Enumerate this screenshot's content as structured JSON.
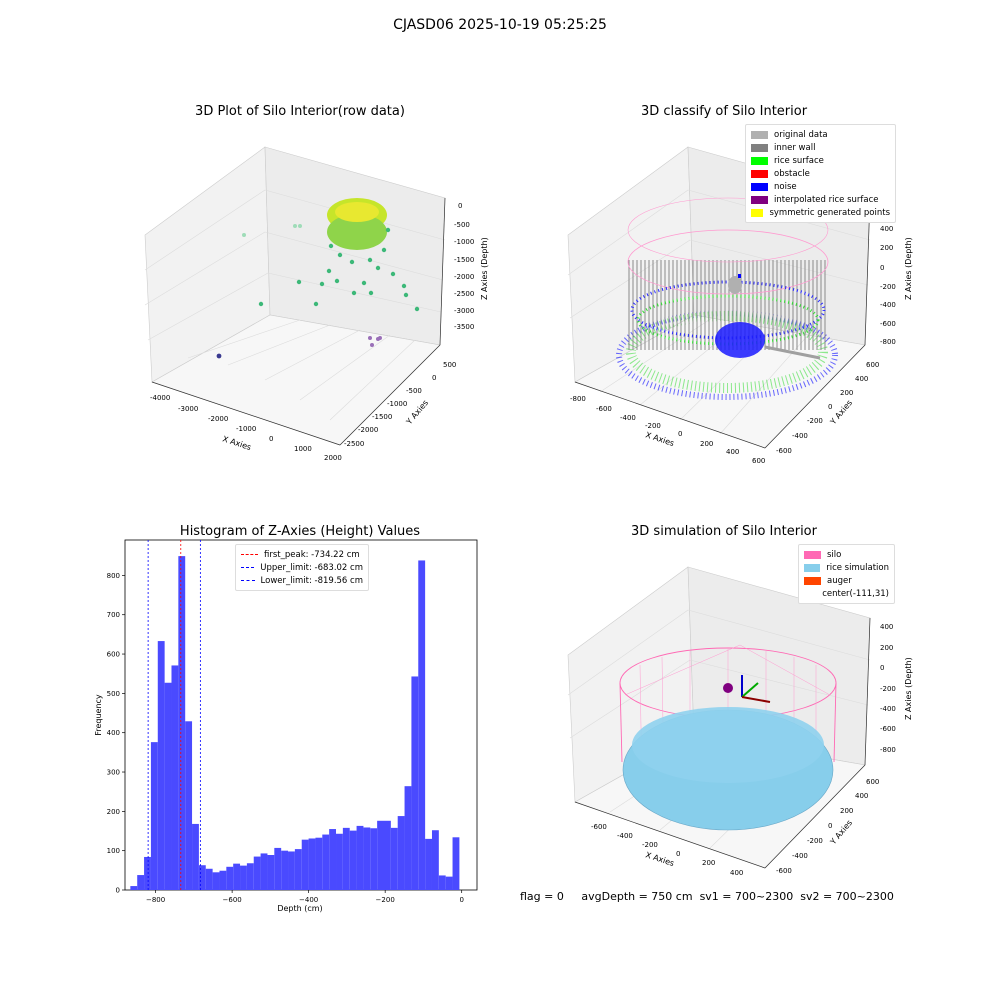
{
  "figure": {
    "title": "CJASD06 2025-10-19 05:25:25"
  },
  "panels": {
    "raw": {
      "title": "3D Plot of Silo Interior(row data)",
      "x_label": "X Axies",
      "y_label": "Y Axies",
      "z_label": "Z Axies (Depth)",
      "x_ticks": [
        "-4000",
        "-3000",
        "-2000",
        "-1000",
        "0",
        "1000",
        "2000"
      ],
      "y_ticks": [
        "500",
        "0",
        "-500",
        "-1000",
        "-1500",
        "-2000",
        "-2500"
      ],
      "z_ticks": [
        "0",
        "-500",
        "-1000",
        "-1500",
        "-2000",
        "-2500",
        "-3000",
        "-3500"
      ]
    },
    "classify": {
      "title": "3D classify of Silo Interior",
      "x_label": "X Axies",
      "y_label": "Y Axies",
      "z_label": "Z Axies (Depth)",
      "x_ticks": [
        "-800",
        "-600",
        "-400",
        "-200",
        "0",
        "200",
        "400",
        "600"
      ],
      "y_ticks": [
        "600",
        "400",
        "200",
        "0",
        "-200",
        "-400",
        "-600"
      ],
      "z_ticks": [
        "400",
        "200",
        "0",
        "-200",
        "-400",
        "-600",
        "-800"
      ],
      "z_tick_partial": "0",
      "legend": [
        {
          "label": "original data",
          "color": "#b0b0b0"
        },
        {
          "label": "inner wall",
          "color": "#808080"
        },
        {
          "label": "rice surface",
          "color": "#00ff00"
        },
        {
          "label": "obstacle",
          "color": "#ff0000"
        },
        {
          "label": "noise",
          "color": "#0000ff"
        },
        {
          "label": "interpolated rice surface",
          "color": "#800080"
        },
        {
          "label": "symmetric generated points",
          "color": "#ffff00"
        }
      ]
    },
    "simulation": {
      "title": "3D simulation of Silo Interior",
      "x_label": "X Axies",
      "y_label": "Y Axies",
      "z_label": "Z Axies (Depth)",
      "x_ticks": [
        "-600",
        "-400",
        "-200",
        "0",
        "200",
        "400"
      ],
      "y_ticks": [
        "600",
        "400",
        "200",
        "0",
        "-200",
        "-400",
        "-600"
      ],
      "z_ticks": [
        "400",
        "200",
        "0",
        "-200",
        "-400",
        "-600",
        "-800"
      ],
      "legend": [
        {
          "label": "silo",
          "color": "#ff69b4"
        },
        {
          "label": "rice simulation",
          "color": "#87ceeb"
        },
        {
          "label": "auger",
          "color": "#ff4500"
        },
        {
          "label": "center(-111,31)",
          "color": "#ffffff"
        }
      ]
    }
  },
  "chart_data": {
    "type": "bar",
    "title": "Histogram of Z-Axies (Height) Values",
    "xlabel": "Depth (cm)",
    "ylabel": "Frequency",
    "xlim": [
      -880,
      40
    ],
    "ylim": [
      0,
      890
    ],
    "bar_color": "#4a4aff",
    "x_ticks": [
      -800,
      -600,
      -400,
      -200,
      0
    ],
    "x_tick_labels": [
      "−800",
      "−600",
      "−400",
      "−200",
      "0"
    ],
    "y_ticks": [
      0,
      100,
      200,
      300,
      400,
      500,
      600,
      700,
      800
    ],
    "bin_width": 13.6,
    "bins": [
      {
        "x": -837.5,
        "y": 10
      },
      {
        "x": -823.9,
        "y": 38
      },
      {
        "x": -810.3,
        "y": 84
      },
      {
        "x": -796.7,
        "y": 376
      },
      {
        "x": -783.1,
        "y": 633
      },
      {
        "x": -769.5,
        "y": 527
      },
      {
        "x": -755.9,
        "y": 571
      },
      {
        "x": -742.3,
        "y": 849
      },
      {
        "x": -728.7,
        "y": 429
      },
      {
        "x": -715.1,
        "y": 168
      },
      {
        "x": -701.5,
        "y": 63
      },
      {
        "x": -687.9,
        "y": 54
      },
      {
        "x": -674.3,
        "y": 45
      },
      {
        "x": -660.7,
        "y": 49
      },
      {
        "x": -647.1,
        "y": 59
      },
      {
        "x": -633.5,
        "y": 67
      },
      {
        "x": -619.9,
        "y": 62
      },
      {
        "x": -606.3,
        "y": 68
      },
      {
        "x": -592.7,
        "y": 85
      },
      {
        "x": -579.1,
        "y": 93
      },
      {
        "x": -565.5,
        "y": 89
      },
      {
        "x": -551.9,
        "y": 107
      },
      {
        "x": -538.3,
        "y": 100
      },
      {
        "x": -524.7,
        "y": 98
      },
      {
        "x": -511.1,
        "y": 104
      },
      {
        "x": -497.5,
        "y": 128
      },
      {
        "x": -483.9,
        "y": 131
      },
      {
        "x": -470.3,
        "y": 133
      },
      {
        "x": -456.7,
        "y": 141
      },
      {
        "x": -443.1,
        "y": 155
      },
      {
        "x": -429.5,
        "y": 143
      },
      {
        "x": -415.9,
        "y": 158
      },
      {
        "x": -402.3,
        "y": 151
      },
      {
        "x": -388.7,
        "y": 163
      },
      {
        "x": -375.1,
        "y": 159
      },
      {
        "x": -361.5,
        "y": 157
      },
      {
        "x": -347.9,
        "y": 176
      },
      {
        "x": -334.3,
        "y": 176
      },
      {
        "x": -320.7,
        "y": 158
      },
      {
        "x": -307.1,
        "y": 188
      },
      {
        "x": -293.5,
        "y": 264
      },
      {
        "x": -279.9,
        "y": 543
      },
      {
        "x": -266.3,
        "y": 838
      },
      {
        "x": -252.7,
        "y": 130
      },
      {
        "x": -239.1,
        "y": 152
      },
      {
        "x": -225.5,
        "y": 37
      },
      {
        "x": -211.9,
        "y": 34
      },
      {
        "x": -198.3,
        "y": 134
      }
    ],
    "reference_lines": [
      {
        "label": "first_peak: -734.22 cm",
        "x": -734.22,
        "color": "#ff0000"
      },
      {
        "label": "Upper_limit: -683.02 cm",
        "x": -683.02,
        "color": "#0000ff"
      },
      {
        "label": "Lower_limit: -819.56 cm",
        "x": -819.56,
        "color": "#0000ff"
      }
    ]
  },
  "footer": {
    "flag": "flag = 0",
    "avg_depth": "avgDepth = 750 cm",
    "sv1": "sv1 = 700~2300",
    "sv2": "sv2 = 700~2300"
  }
}
